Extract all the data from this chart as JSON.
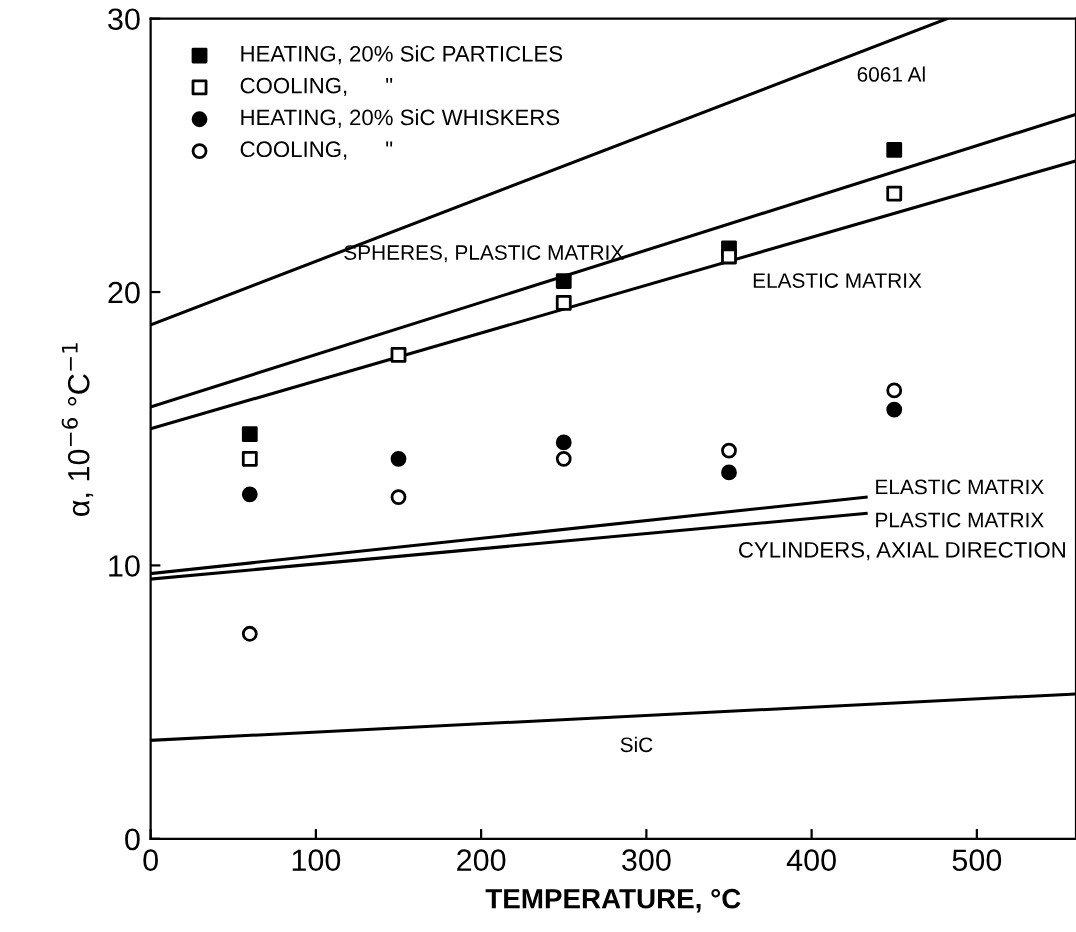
{
  "chart_data": {
    "type": "scatter",
    "xlabel": "TEMPERATURE, °C",
    "ylabel": "α, 10$^{−6}$ °C$^{−1}$",
    "xlim": [
      0,
      560
    ],
    "xticks": [
      0,
      100,
      200,
      300,
      400,
      500
    ],
    "ylim": [
      0,
      30
    ],
    "yticks": [
      0,
      10,
      20,
      30
    ],
    "grid": false,
    "legend": "top left",
    "series": [
      {
        "name": "HEATING, 20% SiC PARTICLES",
        "marker": "square",
        "color": "#000000",
        "x": [
          60,
          250,
          350,
          450
        ],
        "values": [
          14.8,
          20.4,
          21.6,
          25.2
        ]
      },
      {
        "name": "COOLING,      \"",
        "marker": "square",
        "color": "#ffffff",
        "x": [
          60,
          150,
          250,
          350,
          450
        ],
        "values": [
          13.9,
          17.7,
          19.6,
          21.3,
          23.6
        ]
      },
      {
        "name": "HEATING, 20% SiC WHISKERS",
        "marker": "circle",
        "color": "#000000",
        "x": [
          60,
          150,
          250,
          350,
          450
        ],
        "values": [
          12.6,
          13.9,
          14.5,
          13.4,
          15.7
        ]
      },
      {
        "name": "COOLING,      \"",
        "marker": "circle",
        "color": "#ffffff",
        "x": [
          60,
          150,
          250,
          350,
          450
        ],
        "values": [
          7.5,
          12.5,
          13.9,
          14.2,
          16.4
        ]
      },
      {
        "name": "6061 Al",
        "type": "line",
        "color": "#000000",
        "x": [
          0,
          482
        ],
        "values": [
          18.8,
          30
        ]
      },
      {
        "name": "SPHERES, PLASTIC MATRIX",
        "type": "line",
        "color": "#000000",
        "x": [
          0,
          560
        ],
        "values": [
          15.8,
          26.5
        ]
      },
      {
        "name": "ELASTIC MATRIX",
        "type": "line",
        "color": "#000000",
        "x": [
          0,
          560
        ],
        "values": [
          15.0,
          24.8
        ]
      },
      {
        "name": "ELASTIC MATRIX",
        "type": "line",
        "color": "#000000",
        "x": [
          0,
          433
        ],
        "values": [
          9.7,
          12.5
        ]
      },
      {
        "name": "PLASTIC MATRIX",
        "type": "line",
        "color": "#000000",
        "x": [
          0,
          433
        ],
        "values": [
          9.5,
          11.9
        ]
      },
      {
        "name": "SiC",
        "type": "line",
        "color": "#000000",
        "x": [
          0,
          560
        ],
        "values": [
          3.6,
          5.3
        ]
      }
    ],
    "annotations": [
      "CYLINDERS, AXIAL DIRECTION"
    ]
  }
}
